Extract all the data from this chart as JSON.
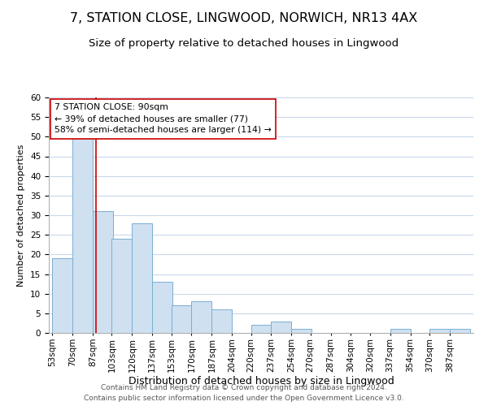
{
  "title": "7, STATION CLOSE, LINGWOOD, NORWICH, NR13 4AX",
  "subtitle": "Size of property relative to detached houses in Lingwood",
  "xlabel": "Distribution of detached houses by size in Lingwood",
  "ylabel": "Number of detached properties",
  "bar_labels": [
    "53sqm",
    "70sqm",
    "87sqm",
    "103sqm",
    "120sqm",
    "137sqm",
    "153sqm",
    "170sqm",
    "187sqm",
    "204sqm",
    "220sqm",
    "237sqm",
    "254sqm",
    "270sqm",
    "287sqm",
    "304sqm",
    "320sqm",
    "337sqm",
    "354sqm",
    "370sqm",
    "387sqm"
  ],
  "bar_values": [
    19,
    50,
    31,
    24,
    28,
    13,
    7,
    8,
    6,
    0,
    2,
    3,
    1,
    0,
    0,
    0,
    0,
    1,
    0,
    1,
    1
  ],
  "bar_color": "#cfe0f0",
  "bar_edge_color": "#7aafd4",
  "ylim": [
    0,
    60
  ],
  "yticks": [
    0,
    5,
    10,
    15,
    20,
    25,
    30,
    35,
    40,
    45,
    50,
    55,
    60
  ],
  "vline_x": 90,
  "vline_color": "#cc0000",
  "annotation_title": "7 STATION CLOSE: 90sqm",
  "annotation_line1": "← 39% of detached houses are smaller (77)",
  "annotation_line2": "58% of semi-detached houses are larger (114) →",
  "annotation_box_color": "#ffffff",
  "annotation_box_edge": "#cc0000",
  "footer_line1": "Contains HM Land Registry data © Crown copyright and database right 2024.",
  "footer_line2": "Contains public sector information licensed under the Open Government Licence v3.0.",
  "background_color": "#ffffff",
  "grid_color": "#c8d8ec",
  "title_fontsize": 11.5,
  "subtitle_fontsize": 9.5,
  "xlabel_fontsize": 9,
  "ylabel_fontsize": 8,
  "tick_fontsize": 7.5,
  "footer_fontsize": 6.5,
  "bin_width": 17,
  "bin_starts": [
    53,
    70,
    87,
    103,
    120,
    137,
    153,
    170,
    187,
    204,
    220,
    237,
    254,
    270,
    287,
    304,
    320,
    337,
    354,
    370,
    387
  ]
}
